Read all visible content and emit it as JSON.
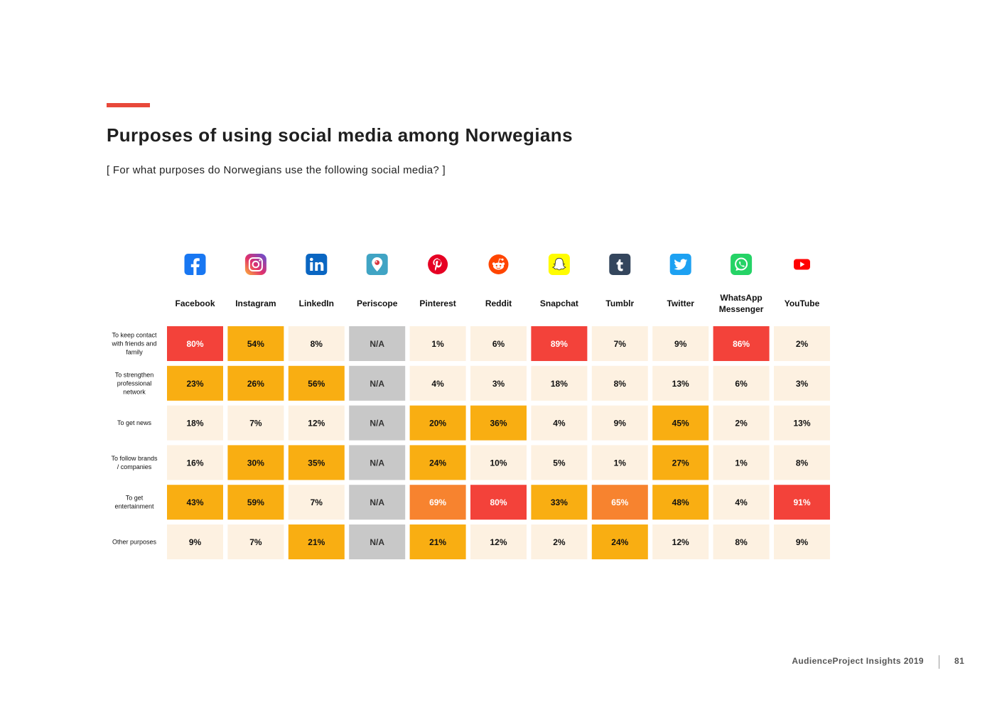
{
  "header": {
    "title": "Purposes of using social media among Norwegians",
    "subtitle": "[ For what purposes do Norwegians use the following social media? ]"
  },
  "footer": {
    "label": "AudienceProject Insights 2019",
    "page": "81"
  },
  "colors": {
    "accent": "#e8483a",
    "low": "#fdf1e1",
    "medium": "#f9ae12",
    "high": "#f7832f",
    "very_high": "#f3423a",
    "na": "#c8c8c8"
  },
  "chart_data": {
    "type": "heatmap",
    "title": "Purposes of using social media among Norwegians",
    "subtitle": "[ For what purposes do Norwegians use the following social media? ]",
    "columns": [
      {
        "name": "Facebook",
        "icon": "facebook-icon"
      },
      {
        "name": "Instagram",
        "icon": "instagram-icon"
      },
      {
        "name": "LinkedIn",
        "icon": "linkedin-icon"
      },
      {
        "name": "Periscope",
        "icon": "periscope-icon"
      },
      {
        "name": "Pinterest",
        "icon": "pinterest-icon"
      },
      {
        "name": "Reddit",
        "icon": "reddit-icon"
      },
      {
        "name": "Snapchat",
        "icon": "snapchat-icon"
      },
      {
        "name": "Tumblr",
        "icon": "tumblr-icon"
      },
      {
        "name": "Twitter",
        "icon": "twitter-icon"
      },
      {
        "name": "WhatsApp Messenger",
        "icon": "whatsapp-icon"
      },
      {
        "name": "YouTube",
        "icon": "youtube-icon"
      }
    ],
    "rows": [
      "To keep contact with friends and family",
      "To strengthen professional network",
      "To get news",
      "To follow brands / companies",
      "To get entertainment",
      "Other purposes"
    ],
    "values": [
      [
        80,
        54,
        8,
        null,
        1,
        6,
        89,
        7,
        9,
        86,
        2
      ],
      [
        23,
        26,
        56,
        null,
        4,
        3,
        18,
        8,
        13,
        6,
        3
      ],
      [
        18,
        7,
        12,
        null,
        20,
        36,
        4,
        9,
        45,
        2,
        13
      ],
      [
        16,
        30,
        35,
        null,
        24,
        10,
        5,
        1,
        27,
        1,
        8
      ],
      [
        43,
        59,
        7,
        null,
        69,
        80,
        33,
        65,
        48,
        4,
        91
      ],
      [
        9,
        7,
        21,
        null,
        21,
        12,
        2,
        24,
        12,
        8,
        9
      ]
    ],
    "levels": [
      [
        "very_high",
        "medium",
        "low",
        "na",
        "low",
        "low",
        "very_high",
        "low",
        "low",
        "very_high",
        "low"
      ],
      [
        "medium",
        "medium",
        "medium",
        "na",
        "low",
        "low",
        "low",
        "low",
        "low",
        "low",
        "low"
      ],
      [
        "low",
        "low",
        "low",
        "na",
        "medium",
        "medium",
        "low",
        "low",
        "medium",
        "low",
        "low"
      ],
      [
        "low",
        "medium",
        "medium",
        "na",
        "medium",
        "low",
        "low",
        "low",
        "medium",
        "low",
        "low"
      ],
      [
        "medium",
        "medium",
        "low",
        "na",
        "high",
        "very_high",
        "medium",
        "high",
        "medium",
        "low",
        "very_high"
      ],
      [
        "low",
        "low",
        "medium",
        "na",
        "medium",
        "low",
        "low",
        "medium",
        "low",
        "low",
        "low"
      ]
    ],
    "na_label": "N/A",
    "value_suffix": "%"
  }
}
